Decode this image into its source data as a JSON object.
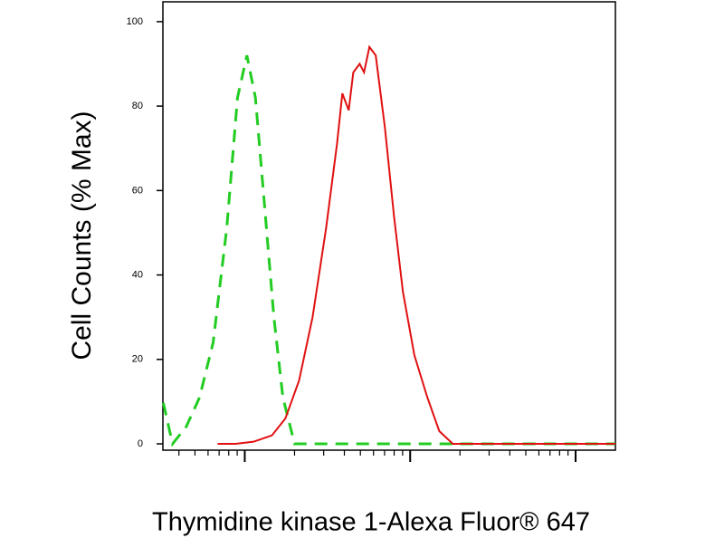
{
  "chart_data": {
    "type": "line",
    "xlabel": "Thymidine kinase 1-Alexa Fluor® 647",
    "ylabel": "Cell Counts (% Max)",
    "xscale": "log",
    "xlim": [
      3.2,
      1740
    ],
    "xticks": [
      10,
      100,
      1000
    ],
    "ylim": [
      -1.5,
      104.7
    ],
    "yticks": [
      0,
      20,
      40,
      60,
      80,
      100
    ],
    "series": [
      {
        "color": "#22cc22",
        "dashed": true,
        "x": [
          3.22,
          3.66,
          4.42,
          5.33,
          6.44,
          7.78,
          9.04,
          10.3,
          11.6,
          13.2,
          15.0,
          17.0,
          20.0,
          1740
        ],
        "values": [
          9.7,
          0,
          4,
          11,
          24,
          51,
          82,
          92,
          82,
          56,
          30,
          11,
          0,
          0
        ]
      },
      {
        "color": "#e01010",
        "dashed": false,
        "x": [
          6.85,
          8.8,
          11.3,
          14.6,
          17.6,
          21.3,
          25.7,
          31.0,
          36.1,
          38.9,
          42.5,
          45.3,
          49.5,
          52.6,
          56.7,
          61.9,
          70.3,
          79.8,
          90.4,
          106,
          127,
          150,
          181,
          232,
          1740
        ],
        "values": [
          0,
          0,
          0.5,
          2,
          6,
          15,
          30,
          51,
          71,
          83,
          79,
          88,
          90,
          88,
          94,
          92,
          75,
          54,
          36,
          21,
          11,
          3,
          0,
          0,
          0
        ]
      }
    ]
  }
}
